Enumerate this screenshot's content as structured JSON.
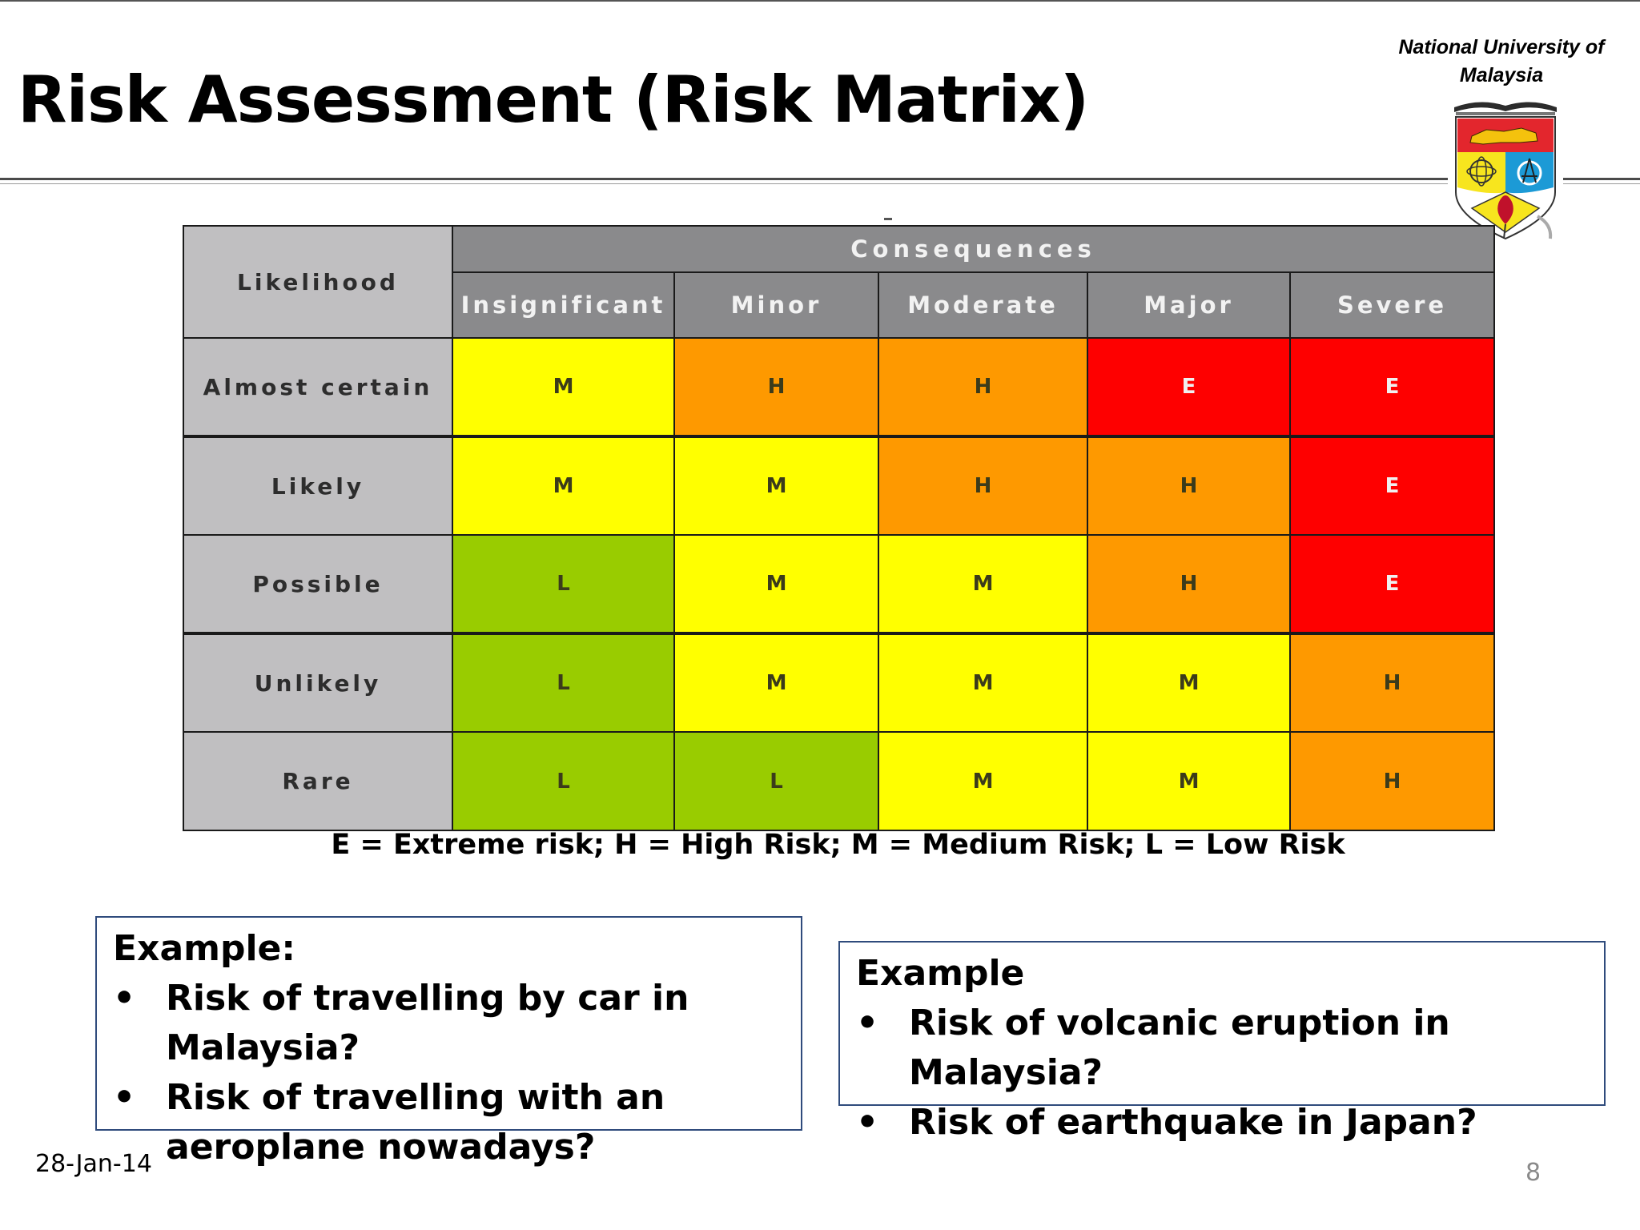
{
  "slide": {
    "title": "Risk Assessment (Risk Matrix)",
    "institution": "National University of Malaysia",
    "date": "28-Jan-14",
    "page_number": "8"
  },
  "matrix": {
    "likelihood_header": "Likelihood",
    "consequences_header": "Consequences",
    "consequence_levels": [
      "Insignificant",
      "Minor",
      "Moderate",
      "Major",
      "Severe"
    ],
    "rows": [
      {
        "likelihood": "Almost certain",
        "cells": [
          "M",
          "H",
          "H",
          "E",
          "E"
        ]
      },
      {
        "likelihood": "Likely",
        "cells": [
          "M",
          "M",
          "H",
          "H",
          "E"
        ]
      },
      {
        "likelihood": "Possible",
        "cells": [
          "L",
          "M",
          "M",
          "H",
          "E"
        ]
      },
      {
        "likelihood": "Unlikely",
        "cells": [
          "L",
          "M",
          "M",
          "M",
          "H"
        ]
      },
      {
        "likelihood": "Rare",
        "cells": [
          "L",
          "L",
          "M",
          "M",
          "H"
        ]
      }
    ],
    "level_colors": {
      "E": "#fe0000",
      "H": "#fe9900",
      "M": "#ffff00",
      "L": "#99cc00"
    },
    "legend": "E = Extreme risk; H = High Risk; M = Medium Risk; L = Low Risk"
  },
  "examples": {
    "left": {
      "heading": "Example:",
      "items": [
        "Risk of travelling by car in Malaysia?",
        "Risk of travelling with an aeroplane nowadays?"
      ]
    },
    "right": {
      "heading": "Example",
      "items": [
        "Risk of volcanic eruption in Malaysia?",
        "Risk of earthquake in Japan?"
      ]
    },
    "bullet": "•"
  },
  "logo": {
    "icon": "university-crest-icon",
    "colors": {
      "red": "#e3262d",
      "yellow": "#f7e51e",
      "blue": "#1c9ad6",
      "gold": "#c9a227"
    }
  }
}
